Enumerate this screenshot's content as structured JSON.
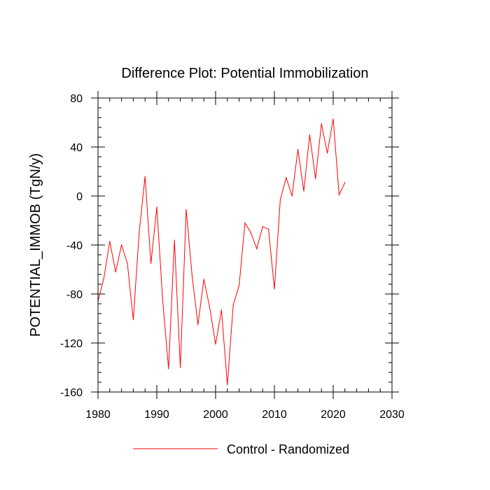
{
  "chart_data": {
    "type": "line",
    "title": "Difference Plot: Potential Immobilization",
    "xlabel": "",
    "ylabel": "POTENTIAL_IMMOB  (TgN/y)",
    "xlim": [
      1980,
      2030
    ],
    "ylim": [
      -160,
      80
    ],
    "xticks": [
      1980,
      1990,
      2000,
      2010,
      2020,
      2030
    ],
    "yticks": [
      80,
      40,
      0,
      -40,
      -80,
      -120,
      -160
    ],
    "xtick_labels": [
      "1980",
      "1990",
      "2000",
      "2010",
      "2020",
      "2030"
    ],
    "ytick_labels": [
      "80",
      "40",
      "0",
      "-40",
      "-80",
      "-120",
      "-160"
    ],
    "grid": false,
    "legend_position": "bottom",
    "series": [
      {
        "name": "Control - Randomized",
        "color": "#ff0000",
        "x": [
          1980,
          1981,
          1982,
          1983,
          1984,
          1985,
          1986,
          1987,
          1988,
          1989,
          1990,
          1991,
          1992,
          1993,
          1994,
          1995,
          1996,
          1997,
          1998,
          1999,
          2000,
          2001,
          2002,
          2003,
          2004,
          2005,
          2006,
          2007,
          2008,
          2009,
          2010,
          2011,
          2012,
          2013,
          2014,
          2015,
          2016,
          2017,
          2018,
          2019,
          2020,
          2021,
          2022
        ],
        "y": [
          -86,
          -67,
          -37,
          -62,
          -40,
          -55,
          -101,
          -30,
          16,
          -55,
          -9,
          -85,
          -141,
          -36,
          -140,
          -11,
          -65,
          -105,
          -68,
          -91,
          -121,
          -93,
          -154,
          -89,
          -73,
          -22,
          -30,
          -43,
          -25,
          -27,
          -76,
          -3,
          15,
          0,
          38,
          4,
          50,
          14,
          59,
          35,
          63,
          1,
          11
        ]
      }
    ]
  }
}
